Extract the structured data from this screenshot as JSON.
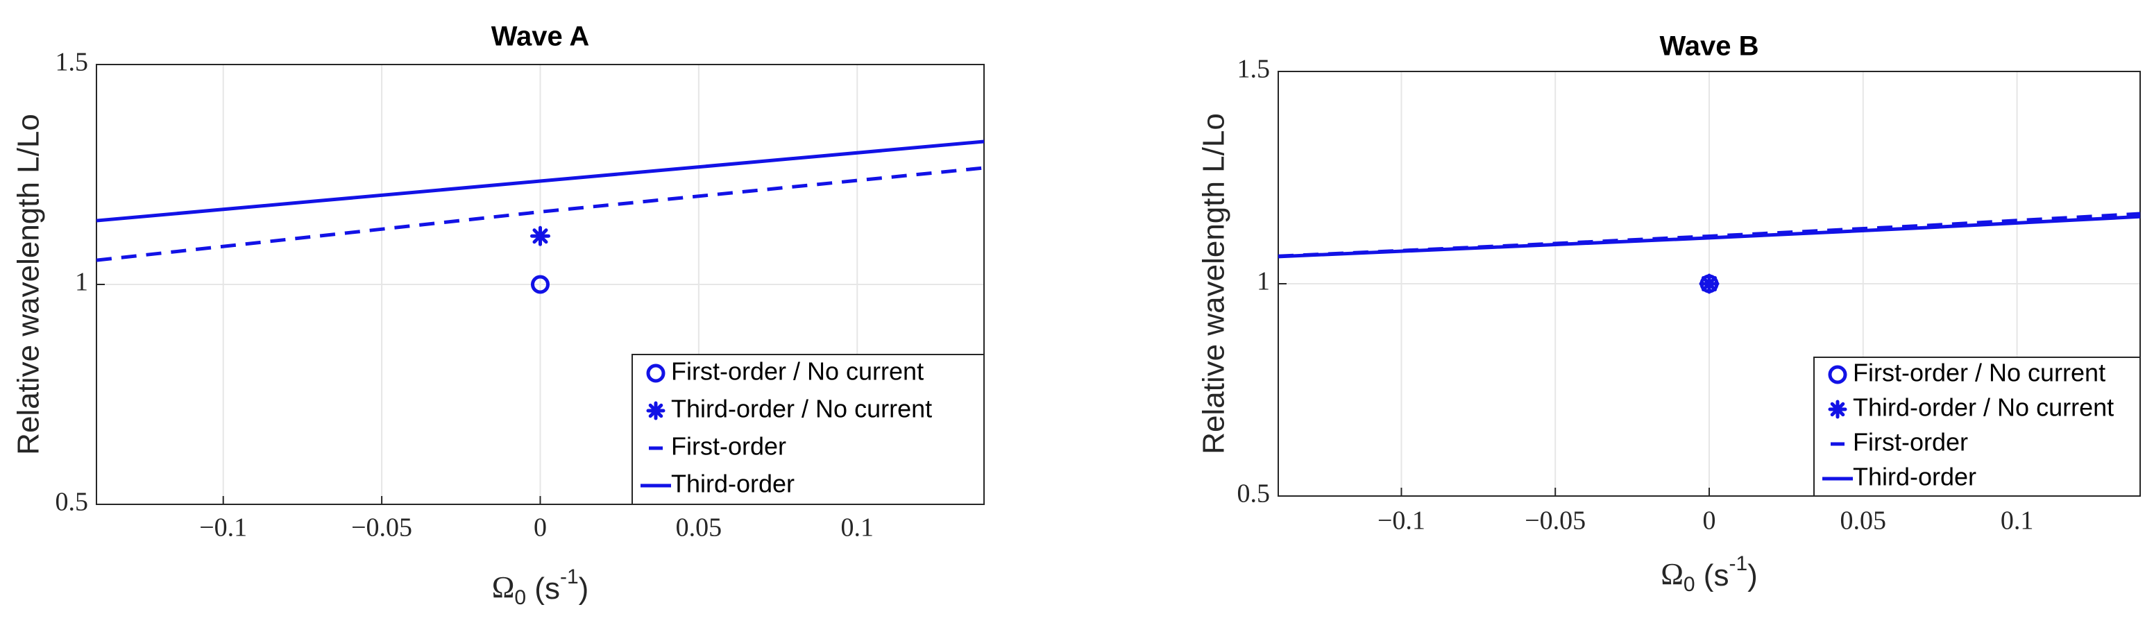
{
  "chart_data": [
    {
      "type": "line",
      "title": "Wave A",
      "x_label": [
        "Ω",
        "0",
        " (s",
        "-1",
        ")"
      ],
      "y_label": "Relative wavelength L/Lo",
      "xlim": [
        -0.14,
        0.14
      ],
      "ylim": [
        0.5,
        1.5
      ],
      "xticks": [
        {
          "value": -0.1,
          "label": "−0.1"
        },
        {
          "value": -0.05,
          "label": "−0.05"
        },
        0,
        0.05,
        0.1
      ],
      "yticks": [
        0.5,
        1,
        1.5
      ],
      "grid": true,
      "legend": "lower right",
      "series": [
        {
          "name": "First-order / No current",
          "color": "#1212e6",
          "marker": "o",
          "x": [
            0
          ],
          "values": [
            1.0
          ]
        },
        {
          "name": "Third-order / No current",
          "color": "#1212e6",
          "marker": "*",
          "x": [
            0
          ],
          "values": [
            1.11
          ]
        },
        {
          "name": "First-order",
          "color": "#1212e6",
          "linestyle": "dashed",
          "x": [
            -0.14,
            -0.07,
            0,
            0.07,
            0.14
          ],
          "values": [
            1.055,
            1.11,
            1.165,
            1.215,
            1.265
          ]
        },
        {
          "name": "Third-order",
          "color": "#1212e6",
          "linestyle": "solid",
          "x": [
            -0.14,
            -0.07,
            0,
            0.07,
            0.14
          ],
          "values": [
            1.145,
            1.19,
            1.235,
            1.28,
            1.325
          ]
        }
      ]
    },
    {
      "type": "line",
      "title": "Wave B",
      "x_label": [
        "Ω",
        "0",
        " (s",
        "-1",
        ")"
      ],
      "y_label": "Relative wavelength L/Lo",
      "xlim": [
        -0.14,
        0.14
      ],
      "ylim": [
        0.5,
        1.5
      ],
      "xticks": [
        {
          "value": -0.1,
          "label": "−0.1"
        },
        {
          "value": -0.05,
          "label": "−0.05"
        },
        0,
        0.05,
        0.1
      ],
      "yticks": [
        0.5,
        1,
        1.5
      ],
      "grid": true,
      "legend": "lower right",
      "series": [
        {
          "name": "First-order / No current",
          "color": "#1212e6",
          "marker": "o",
          "x": [
            0
          ],
          "values": [
            1.0
          ]
        },
        {
          "name": "Third-order / No current",
          "color": "#1212e6",
          "marker": "*",
          "x": [
            0
          ],
          "values": [
            1.0
          ]
        },
        {
          "name": "First-order",
          "color": "#1212e6",
          "linestyle": "dashed",
          "x": [
            -0.14,
            -0.07,
            0,
            0.07,
            0.14
          ],
          "values": [
            1.065,
            1.088,
            1.112,
            1.137,
            1.165
          ]
        },
        {
          "name": "Third-order",
          "color": "#1212e6",
          "linestyle": "solid",
          "x": [
            -0.14,
            -0.07,
            0,
            0.07,
            0.14
          ],
          "values": [
            1.064,
            1.086,
            1.108,
            1.132,
            1.158
          ]
        }
      ]
    }
  ]
}
